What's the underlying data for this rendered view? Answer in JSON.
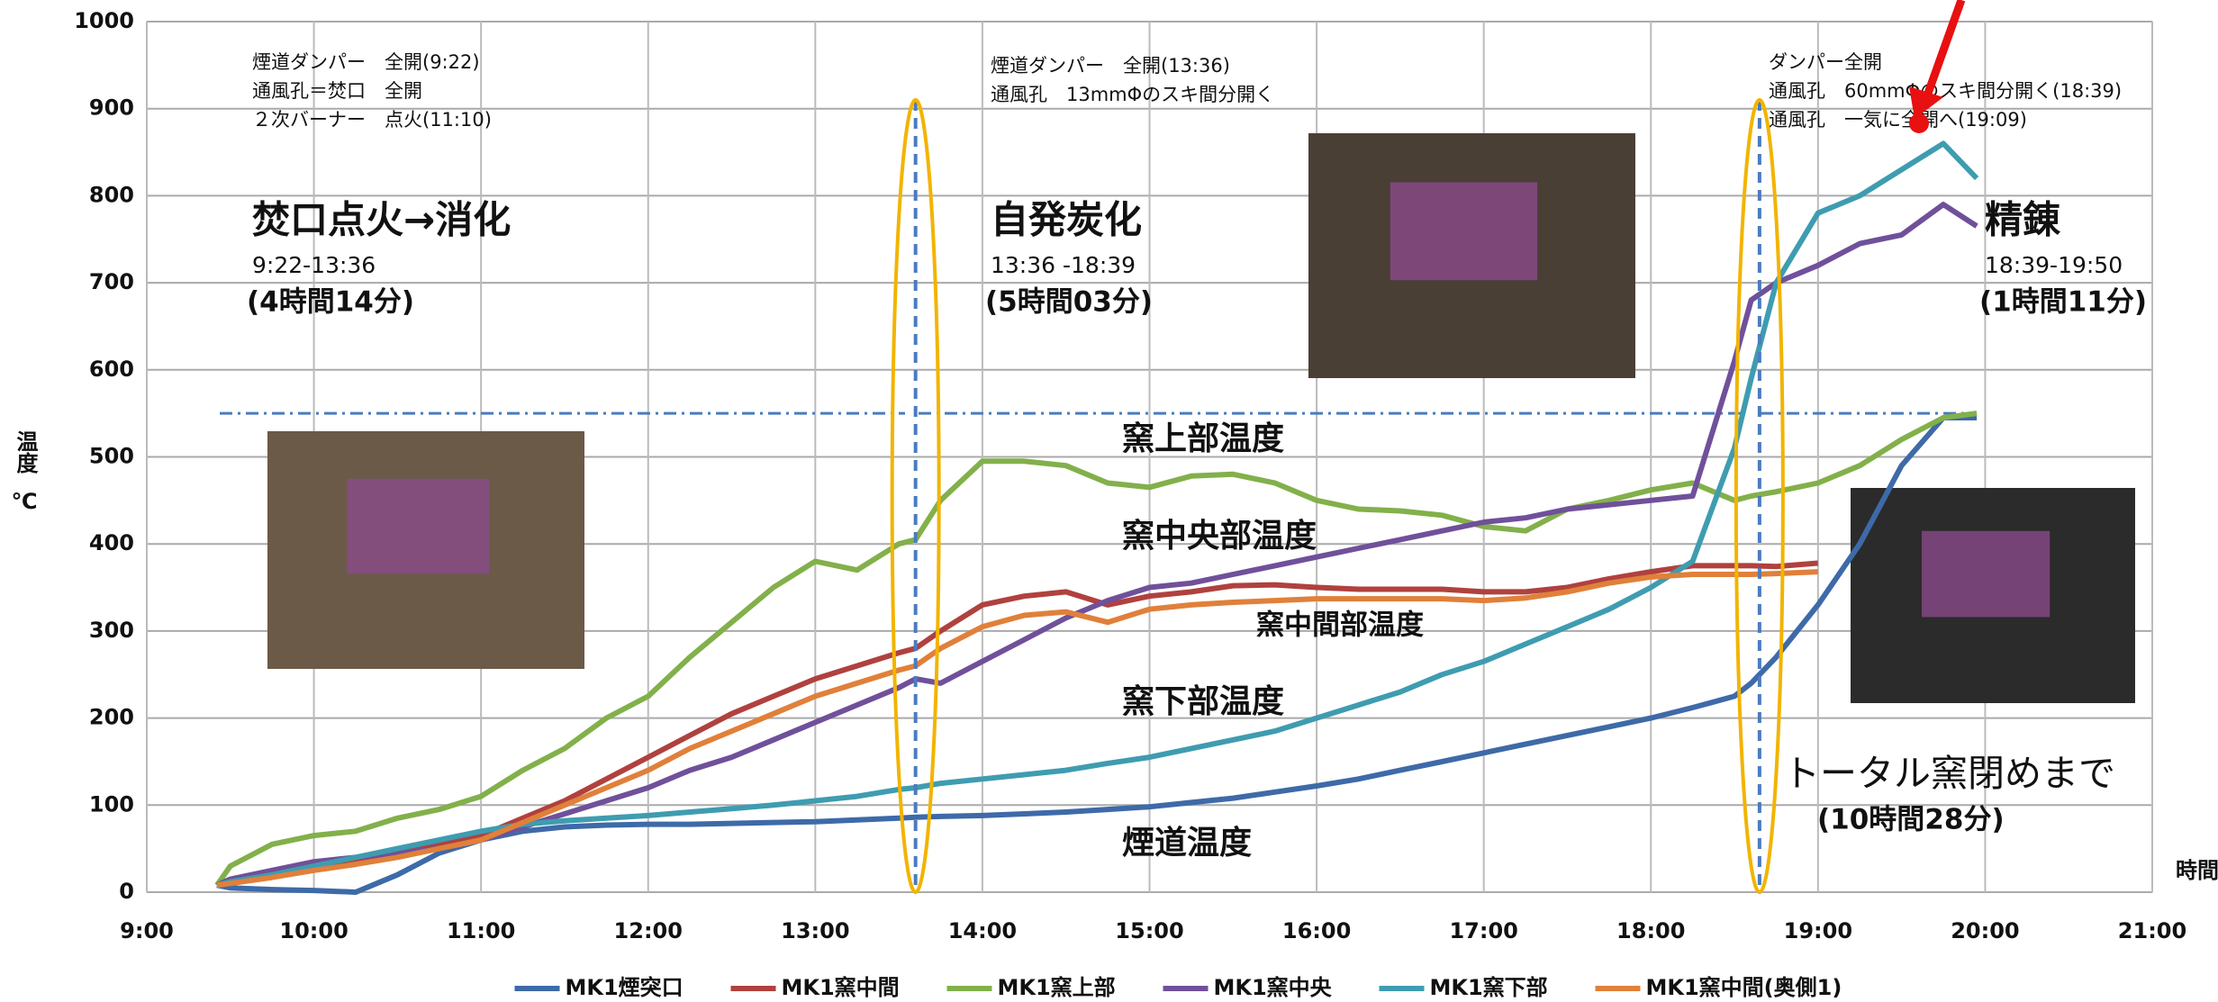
{
  "chart_data": {
    "type": "line",
    "ylabel": "温度",
    "yunit": "℃",
    "xlabel": "時間",
    "xlim": [
      9,
      21
    ],
    "xticks": [
      {
        "value": 9,
        "label": "9:00"
      },
      {
        "value": 10,
        "label": "10:00"
      },
      {
        "value": 11,
        "label": "11:00"
      },
      {
        "value": 12,
        "label": "12:00"
      },
      {
        "value": 13,
        "label": "13:00"
      },
      {
        "value": 14,
        "label": "14:00"
      },
      {
        "value": 15,
        "label": "15:00"
      },
      {
        "value": 16,
        "label": "16:00"
      },
      {
        "value": 17,
        "label": "17:00"
      },
      {
        "value": 18,
        "label": "18:00"
      },
      {
        "value": 19,
        "label": "19:00"
      },
      {
        "value": 20,
        "label": "20:00"
      },
      {
        "value": 21,
        "label": "21:00"
      }
    ],
    "ylim": [
      0,
      1000
    ],
    "yticks": [
      0,
      100,
      200,
      300,
      400,
      500,
      600,
      700,
      800,
      900,
      1000
    ],
    "grid": true,
    "x": [
      9.42,
      9.5,
      9.75,
      10,
      10.25,
      10.5,
      10.75,
      11,
      11.25,
      11.5,
      11.75,
      12,
      12.25,
      12.5,
      12.75,
      13,
      13.25,
      13.5,
      13.6,
      13.75,
      14,
      14.25,
      14.5,
      14.75,
      15,
      15.25,
      15.5,
      15.75,
      16,
      16.25,
      16.5,
      16.75,
      17,
      17.25,
      17.5,
      17.75,
      18,
      18.25,
      18.5,
      18.6,
      18.75,
      19,
      19.25,
      19.5,
      19.75,
      19.95
    ],
    "series": [
      {
        "name": "MK1煙突口",
        "color": "#3e6aa8",
        "values": [
          8,
          5,
          3,
          2,
          0,
          20,
          45,
          60,
          70,
          75,
          77,
          78,
          78,
          79,
          80,
          81,
          83,
          85,
          86,
          87,
          88,
          90,
          92,
          95,
          98,
          103,
          108,
          115,
          122,
          130,
          140,
          150,
          160,
          170,
          180,
          190,
          200,
          212,
          225,
          240,
          270,
          330,
          400,
          490,
          545,
          545
        ]
      },
      {
        "name": "MK1窯中間",
        "color": "#b0413e",
        "values": [
          8,
          12,
          20,
          30,
          38,
          45,
          55,
          65,
          85,
          105,
          130,
          155,
          180,
          205,
          225,
          245,
          260,
          275,
          280,
          300,
          330,
          340,
          345,
          330,
          340,
          345,
          352,
          353,
          350,
          348,
          348,
          348,
          345,
          345,
          350,
          360,
          368,
          375,
          375,
          375,
          374,
          378,
          null,
          null,
          null,
          null
        ]
      },
      {
        "name": "MK1窯上部",
        "color": "#82b04a",
        "values": [
          8,
          30,
          55,
          65,
          70,
          85,
          95,
          110,
          140,
          165,
          200,
          225,
          270,
          310,
          350,
          380,
          370,
          400,
          405,
          450,
          495,
          495,
          490,
          470,
          465,
          478,
          480,
          470,
          450,
          440,
          438,
          433,
          420,
          415,
          440,
          450,
          462,
          470,
          450,
          455,
          460,
          470,
          490,
          520,
          545,
          550
        ]
      },
      {
        "name": "MK1窯中央",
        "color": "#70509a",
        "values": [
          8,
          15,
          25,
          35,
          40,
          45,
          50,
          60,
          75,
          90,
          105,
          120,
          140,
          155,
          175,
          195,
          215,
          235,
          245,
          240,
          265,
          290,
          315,
          335,
          350,
          355,
          365,
          375,
          385,
          395,
          405,
          415,
          425,
          430,
          440,
          445,
          450,
          455,
          610,
          680,
          700,
          720,
          745,
          755,
          790,
          765
        ]
      },
      {
        "name": "MK1窯下部",
        "color": "#3f9cb0",
        "values": [
          8,
          12,
          20,
          30,
          40,
          50,
          60,
          70,
          78,
          82,
          85,
          88,
          92,
          96,
          100,
          105,
          110,
          118,
          120,
          125,
          130,
          135,
          140,
          148,
          155,
          165,
          175,
          185,
          200,
          215,
          230,
          250,
          265,
          285,
          305,
          325,
          350,
          380,
          510,
          590,
          700,
          780,
          800,
          830,
          860,
          820
        ]
      },
      {
        "name": "MK1窯中間(奥側1)",
        "color": "#e0803a",
        "values": [
          8,
          10,
          17,
          25,
          32,
          40,
          50,
          60,
          80,
          100,
          120,
          140,
          165,
          185,
          205,
          225,
          240,
          255,
          260,
          280,
          305,
          318,
          322,
          310,
          325,
          330,
          333,
          335,
          337,
          337,
          337,
          337,
          335,
          338,
          345,
          355,
          362,
          365,
          365,
          365,
          366,
          368,
          null,
          null,
          null,
          null
        ]
      }
    ],
    "phase_boundaries": [
      13.6,
      18.65
    ],
    "notes": [
      [
        "煙道ダンパー　全開(9:22)",
        "通風孔＝焚口　全開",
        "２次バーナー　点火(11:10)"
      ],
      [
        "煙道ダンパー　全開(13:36)",
        "通風孔　13mmΦのスキ間分開く"
      ],
      [
        "ダンパー全開",
        "通風孔　60mmΦのスキ間分開く(18:39)",
        "通風孔　一気に全開へ(19:09)"
      ]
    ],
    "phases": [
      {
        "name": "焚口点火→消化",
        "range": "9:22-13:36",
        "duration": "(4時間14分)"
      },
      {
        "name": "自発炭化",
        "range": "13:36 -18:39",
        "duration": "(5時間03分)"
      },
      {
        "name": "精錬",
        "range": "18:39-19:50",
        "duration": "(1時間11分)"
      }
    ],
    "curve_labels": [
      "窯上部温度",
      "窯中央部温度",
      "窯中間部温度",
      "窯下部温度",
      "煙道温度"
    ],
    "total": {
      "label": "トータル窯閉めまで",
      "duration": "(10時間28分)"
    }
  }
}
